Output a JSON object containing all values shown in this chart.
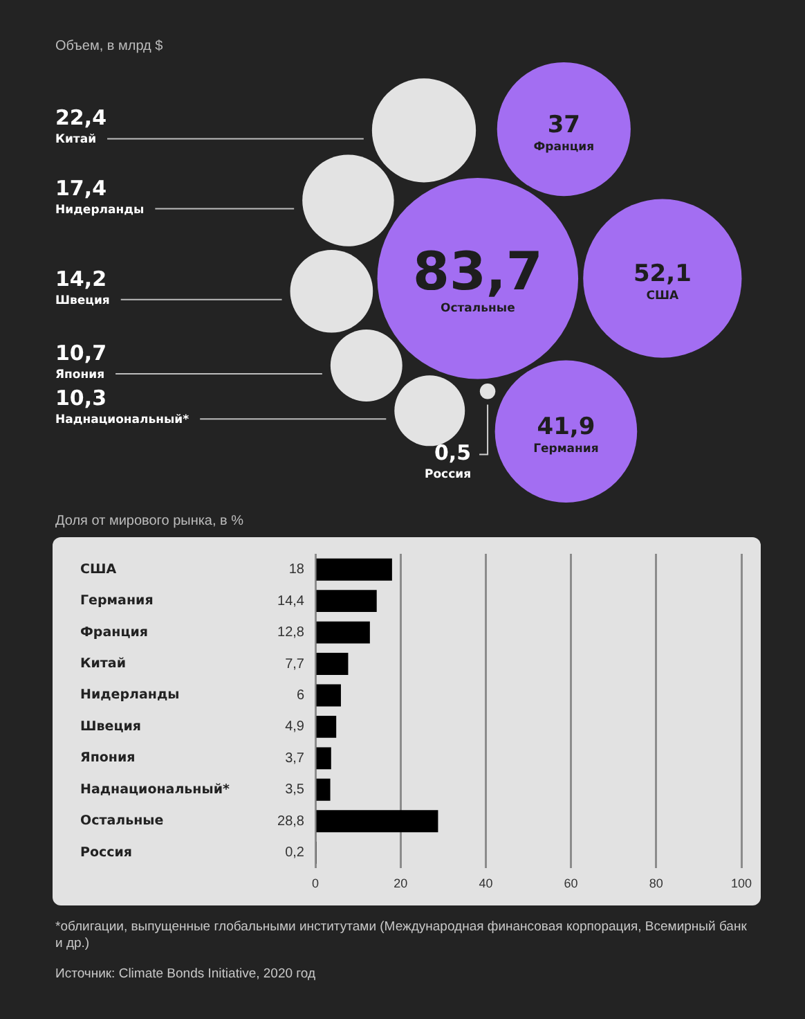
{
  "chart_data": [
    {
      "type": "other",
      "title": "Объем, в млрд $",
      "categories": [
        "Китай",
        "Нидерланды",
        "Швеция",
        "Япония",
        "Наднациональный*",
        "Россия",
        "Остальные",
        "Франция",
        "США",
        "Германия"
      ],
      "values": [
        22.4,
        17.4,
        14.2,
        10.7,
        10.3,
        0.5,
        83.7,
        37,
        52.1,
        41.9
      ],
      "value_labels": [
        "22,4",
        "17,4",
        "14,2",
        "10,7",
        "10,3",
        "0,5",
        "83,7",
        "37",
        "52,1",
        "41,9"
      ],
      "colors": [
        "#e3e3e3",
        "#e3e3e3",
        "#e3e3e3",
        "#e3e3e3",
        "#e3e3e3",
        "#e3e3e3",
        "#a36ef2",
        "#a36ef2",
        "#a36ef2",
        "#a36ef2"
      ]
    },
    {
      "type": "bar",
      "orientation": "horizontal",
      "title": "Доля от мирового рынка, в %",
      "categories": [
        "США",
        "Германия",
        "Франция",
        "Китай",
        "Нидерланды",
        "Швеция",
        "Япония",
        "Наднациональный*",
        "Остальные",
        "Россия"
      ],
      "values": [
        18,
        14.4,
        12.8,
        7.7,
        6,
        4.9,
        3.7,
        3.5,
        28.8,
        0.2
      ],
      "value_labels": [
        "18",
        "14,4",
        "12,8",
        "7,7",
        "6",
        "4,9",
        "3,7",
        "3,5",
        "28,8",
        "0,2"
      ],
      "color": "#000000",
      "xlim": [
        0,
        100
      ],
      "xticks": [
        0,
        20,
        40,
        60,
        80,
        100
      ],
      "grid": "x",
      "annotations": [
        "*облигации, выпущенные глобальными институтами (Международная финансовая корпорация, Всемирный банк и др.)",
        "Источник: Climate Bonds Initiative, 2020 год"
      ]
    }
  ]
}
